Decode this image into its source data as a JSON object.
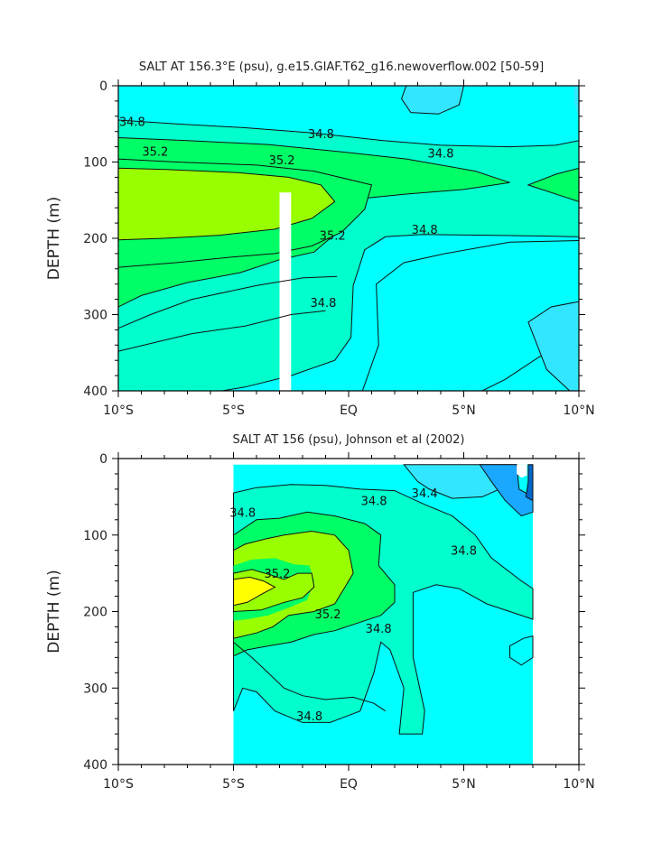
{
  "chart_data": [
    {
      "type": "heatmap",
      "title": "SALT AT 156.3°E (psu), g.e15.GIAF.T62_g16.newoverflow.002 [50-59]",
      "ylabel": "DEPTH (m)",
      "xlabel": "",
      "xlim": [
        -10,
        10
      ],
      "ylim": [
        400,
        0
      ],
      "x_ticks": [
        -10,
        -5,
        0,
        5,
        10
      ],
      "x_tick_labels": [
        "10°S",
        "5°S",
        "EQ",
        "5°N",
        "10°N"
      ],
      "y_ticks": [
        0,
        100,
        200,
        300,
        400
      ],
      "y_tick_labels": [
        "0",
        "100",
        "200",
        "300",
        "400"
      ],
      "contour_interval_psu": 0.2,
      "contour_labels": [
        {
          "text": "34.8",
          "lon": -9.4,
          "depth": 47
        },
        {
          "text": "34.8",
          "lon": -1.2,
          "depth": 63
        },
        {
          "text": "34.8",
          "lon": 4.0,
          "depth": 88
        },
        {
          "text": "35.2",
          "lon": -8.4,
          "depth": 86
        },
        {
          "text": "35.2",
          "lon": -2.9,
          "depth": 97
        },
        {
          "text": "35.2",
          "lon": -0.7,
          "depth": 196
        },
        {
          "text": "34.8",
          "lon": 3.3,
          "depth": 188
        },
        {
          "text": "34.8",
          "lon": -1.1,
          "depth": 284
        }
      ],
      "missing_data_column": {
        "lon": [
          -3.0,
          -2.5
        ],
        "depth": [
          140,
          400
        ]
      }
    },
    {
      "type": "heatmap",
      "title": "SALT AT 156 (psu), Johnson et al (2002)",
      "ylabel": "DEPTH (m)",
      "xlabel": "",
      "xlim": [
        -10,
        10
      ],
      "ylim": [
        400,
        0
      ],
      "data_lon_range": [
        -5,
        8
      ],
      "x_ticks": [
        -10,
        -5,
        0,
        5,
        10
      ],
      "x_tick_labels": [
        "10°S",
        "5°S",
        "EQ",
        "5°N",
        "10°N"
      ],
      "y_ticks": [
        0,
        100,
        200,
        300,
        400
      ],
      "y_tick_labels": [
        "0",
        "100",
        "200",
        "300",
        "400"
      ],
      "contour_interval_psu": 0.2,
      "contour_labels": [
        {
          "text": "34.8",
          "lon": -4.6,
          "depth": 70
        },
        {
          "text": "34.8",
          "lon": 1.1,
          "depth": 55
        },
        {
          "text": "34.4",
          "lon": 3.3,
          "depth": 45
        },
        {
          "text": "34.8",
          "lon": 5.0,
          "depth": 120
        },
        {
          "text": "35.2",
          "lon": -3.1,
          "depth": 150
        },
        {
          "text": "35.2",
          "lon": -0.9,
          "depth": 203
        },
        {
          "text": "34.8",
          "lon": 1.3,
          "depth": 222
        },
        {
          "text": "34.8",
          "lon": -1.7,
          "depth": 336
        }
      ]
    }
  ]
}
